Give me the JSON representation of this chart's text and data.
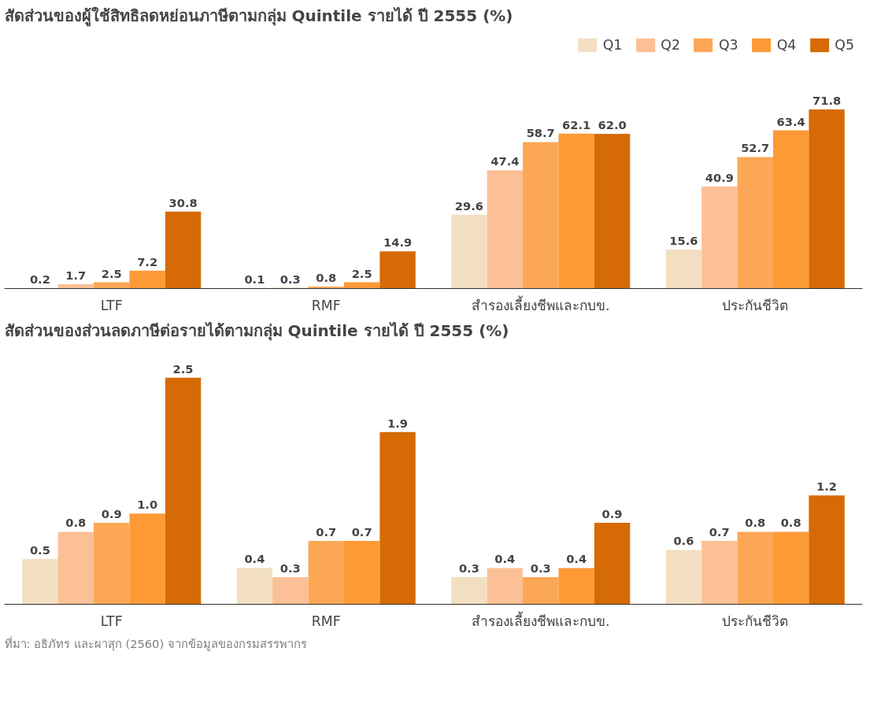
{
  "chart_data": [
    {
      "type": "bar",
      "title": "สัดส่วนของผู้ใช้สิทธิลดหย่อนภาษีตามกลุ่ม Quintile รายได้ ปี 2555 (%)",
      "categories": [
        "LTF",
        "RMF",
        "สำรองเลี้ยงชีพและกบข.",
        "ประกันชีวิต"
      ],
      "legend": "top right",
      "grid": false,
      "series": [
        {
          "name": "Q1",
          "color": "#f2dfc1",
          "values": [
            0.2,
            0.1,
            29.6,
            15.6
          ],
          "value_labels": [
            "0.2",
            "0.1",
            "29.6",
            "15.6"
          ]
        },
        {
          "name": "Q2",
          "color": "#fcc096",
          "values": [
            1.7,
            0.3,
            47.4,
            40.9
          ],
          "value_labels": [
            "1.7",
            "0.3",
            "47.4",
            "40.9"
          ]
        },
        {
          "name": "Q3",
          "color": "#fca755",
          "values": [
            2.5,
            0.8,
            58.7,
            52.7
          ],
          "value_labels": [
            "2.5",
            "0.8",
            "58.7",
            "52.7"
          ]
        },
        {
          "name": "Q4",
          "color": "#fd9a36",
          "values": [
            7.2,
            2.5,
            62.1,
            63.4
          ],
          "value_labels": [
            "7.2",
            "2.5",
            "62.1",
            "63.4"
          ]
        },
        {
          "name": "Q5",
          "color": "#d66a04",
          "values": [
            30.8,
            14.9,
            62.0,
            71.8
          ],
          "value_labels": [
            "30.8",
            "14.9",
            "62.0",
            "71.8"
          ]
        }
      ]
    },
    {
      "type": "bar",
      "title": "สัดส่วนของส่วนลดภาษีต่อรายได้ตามกลุ่ม Quintile รายได้ ปี 2555 (%)",
      "categories": [
        "LTF",
        "RMF",
        "สำรองเลี้ยงชีพและกบข.",
        "ประกันชีวิต"
      ],
      "legend": false,
      "grid": false,
      "annotations": [
        "ที่มา: อธิภัทร และผาสุก (2560) จากข้อมูลของกรมสรรพากร"
      ],
      "series": [
        {
          "color": "#f2dfc1",
          "values": [
            0.5,
            0.4,
            0.3,
            0.6
          ],
          "value_labels": [
            "0.5",
            "0.4",
            "0.3",
            "0.6"
          ]
        },
        {
          "color": "#fcc096",
          "values": [
            0.8,
            0.3,
            0.4,
            0.7
          ],
          "value_labels": [
            "0.8",
            "0.3",
            "0.4",
            "0.7"
          ]
        },
        {
          "color": "#fca755",
          "values": [
            0.9,
            0.7,
            0.3,
            0.8
          ],
          "value_labels": [
            "0.9",
            "0.7",
            "0.3",
            "0.8"
          ]
        },
        {
          "color": "#fd9a36",
          "values": [
            1.0,
            0.7,
            0.4,
            0.8
          ],
          "value_labels": [
            "1.0",
            "0.7",
            "0.4",
            "0.8"
          ]
        },
        {
          "color": "#d66a04",
          "values": [
            2.5,
            1.9,
            0.9,
            1.2
          ],
          "value_labels": [
            "2.5",
            "1.9",
            "0.9",
            "1.2"
          ]
        }
      ]
    }
  ]
}
